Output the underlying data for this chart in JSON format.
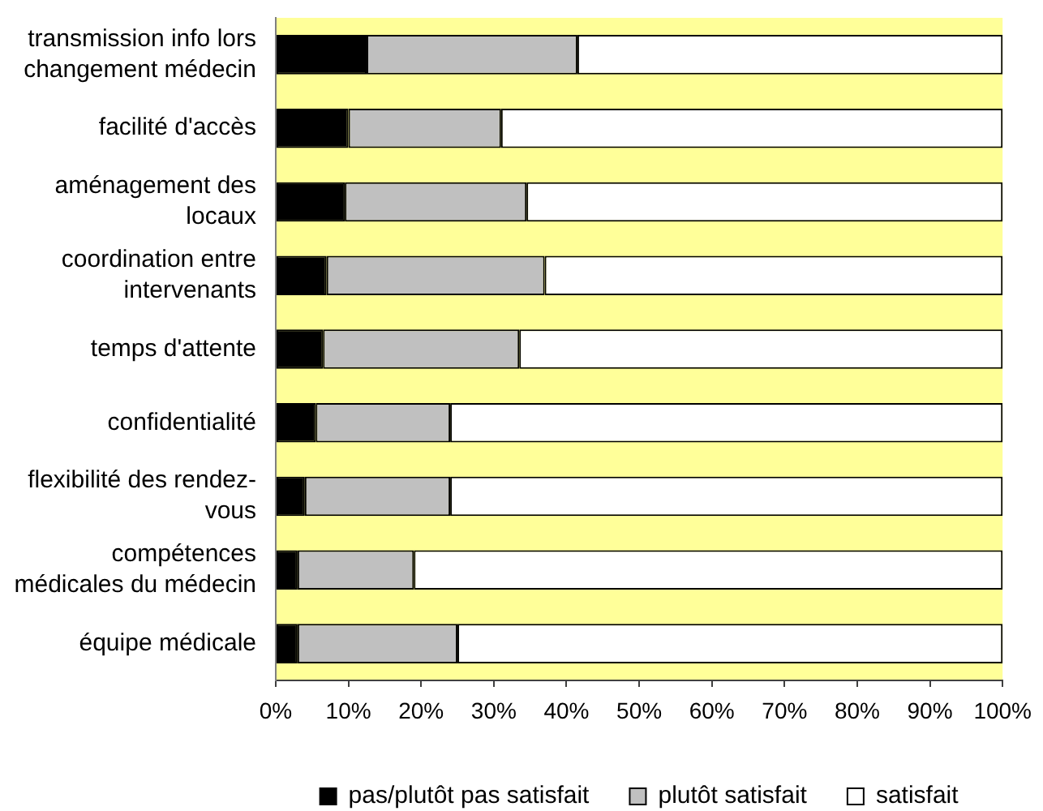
{
  "chart_data": {
    "type": "bar",
    "orientation": "horizontal",
    "stacked": true,
    "categories": [
      "transmission info lors changement médecin",
      "facilité d'accès",
      "aménagement des locaux",
      "coordination entre intervenants",
      "temps d'attente",
      "confidentialité",
      "flexibilité des rendez-vous",
      "compétences médicales du médecin",
      "équipe médicale"
    ],
    "series": [
      {
        "name": "pas/plutôt pas satisfait",
        "color": "#000000",
        "values": [
          12.5,
          10,
          9.5,
          7,
          6.5,
          5.5,
          4,
          3,
          3
        ]
      },
      {
        "name": "plutôt satisfait",
        "color": "#c0c0c0",
        "values": [
          29,
          21,
          25,
          30,
          27,
          18.5,
          20,
          16,
          22
        ]
      },
      {
        "name": "satisfait",
        "color": "#ffffff",
        "values": [
          58.5,
          69,
          65.5,
          63,
          66.5,
          76,
          76,
          81,
          75
        ]
      }
    ],
    "xlim": [
      0,
      100
    ],
    "xticks": [
      {
        "value": 0,
        "label": "0%"
      },
      {
        "value": 10,
        "label": "10%"
      },
      {
        "value": 20,
        "label": "20%"
      },
      {
        "value": 30,
        "label": "30%"
      },
      {
        "value": 40,
        "label": "40%"
      },
      {
        "value": 50,
        "label": "50%"
      },
      {
        "value": 60,
        "label": "60%"
      },
      {
        "value": 70,
        "label": "70%"
      },
      {
        "value": 80,
        "label": "80%"
      },
      {
        "value": 90,
        "label": "90%"
      },
      {
        "value": 100,
        "label": "100%"
      }
    ],
    "legend": "bottom"
  }
}
